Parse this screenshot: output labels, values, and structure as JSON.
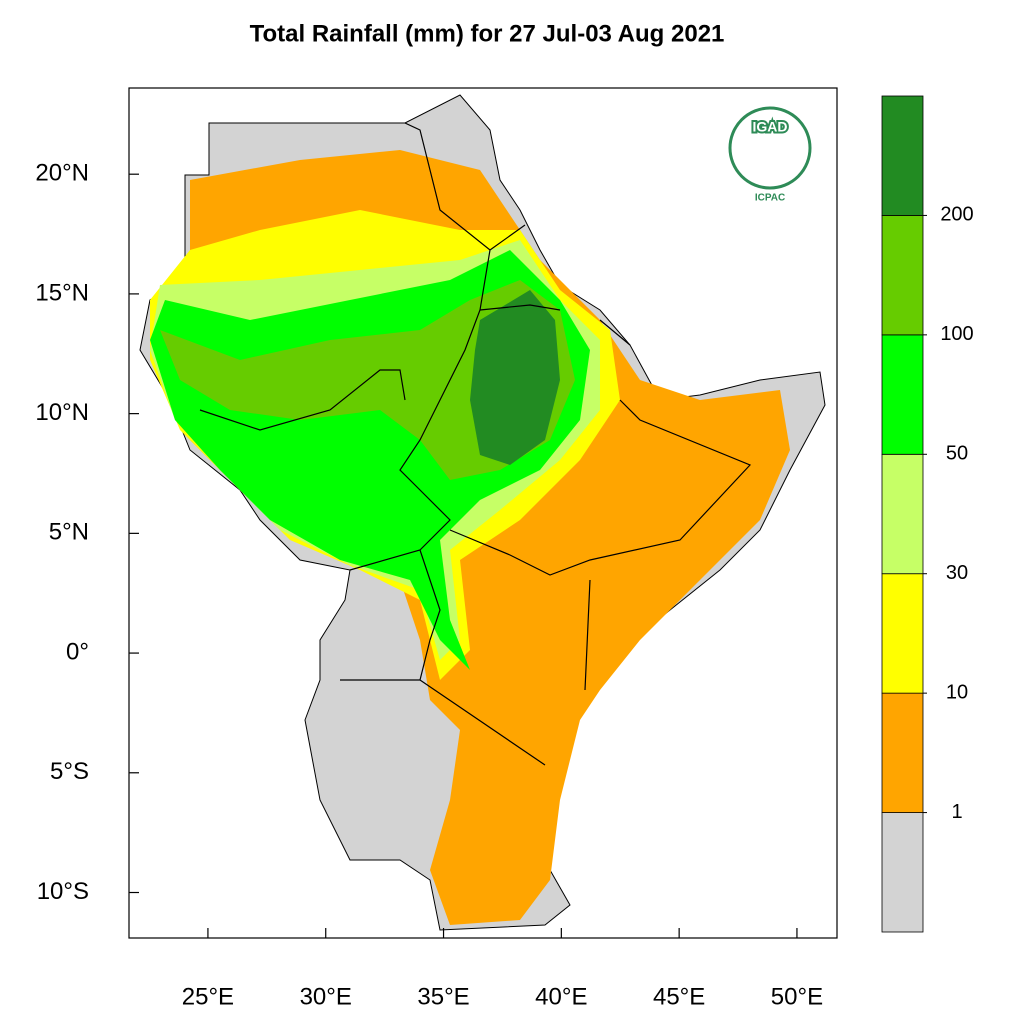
{
  "chart_data": {
    "type": "map",
    "title": "Total Rainfall (mm) for 27 Jul-03 Aug 2021",
    "xlim": [
      21.65,
      51.7
    ],
    "ylim": [
      -11.9,
      23.6
    ],
    "xticks": [
      {
        "value": 25,
        "label": "25°E"
      },
      {
        "value": 30,
        "label": "30°E"
      },
      {
        "value": 35,
        "label": "35°E"
      },
      {
        "value": 40,
        "label": "40°E"
      },
      {
        "value": 45,
        "label": "45°E"
      },
      {
        "value": 50,
        "label": "50°E"
      }
    ],
    "yticks": [
      {
        "value": 20,
        "label": "20°N"
      },
      {
        "value": 15,
        "label": "15°N"
      },
      {
        "value": 10,
        "label": "10°N"
      },
      {
        "value": 5,
        "label": "5°N"
      },
      {
        "value": 0,
        "label": "0°"
      },
      {
        "value": -5,
        "label": "5°S"
      },
      {
        "value": -10,
        "label": "10°S"
      }
    ],
    "colorbar": {
      "levels": [
        1,
        10,
        30,
        50,
        100,
        200
      ],
      "colors": [
        "#d3d3d3",
        "#ffa500",
        "#ffff00",
        "#c6ff66",
        "#00ff00",
        "#66cc00",
        "#228b22"
      ]
    },
    "logo": {
      "name": "IGAD",
      "org": "ICPAC"
    }
  }
}
